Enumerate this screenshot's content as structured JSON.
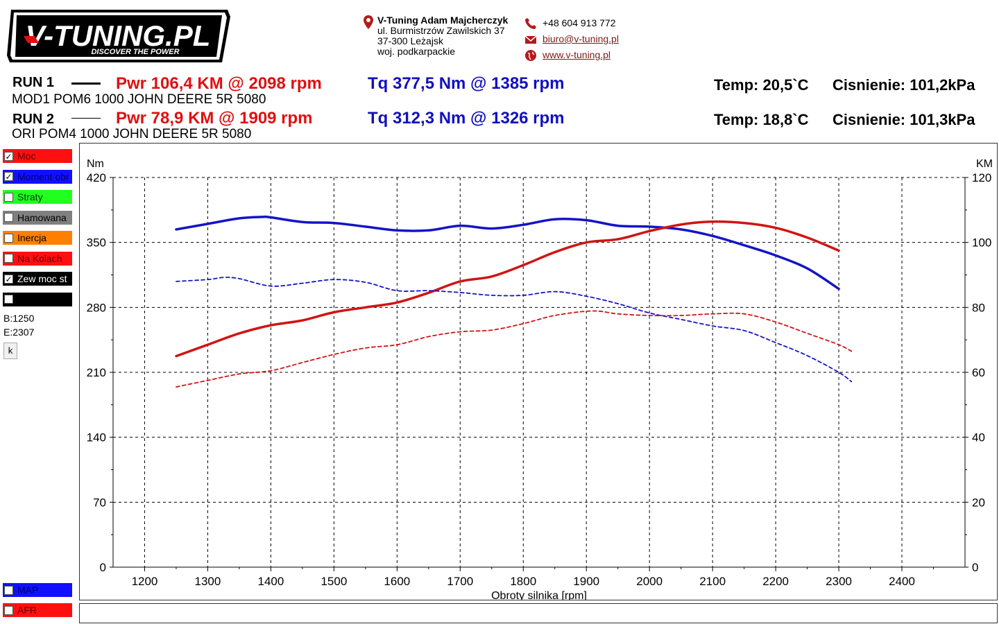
{
  "logo": {
    "text": "V-TUNING.PL",
    "tagline": "DISCOVER THE POWER"
  },
  "contact": {
    "company": "V-Tuning Adam Majcherczyk",
    "street": "ul. Burmistrzów Zawilskich 37",
    "city": "37-300 Leżajsk",
    "region": "woj. podkarpackie",
    "phone": "+48 604 913 772",
    "email": "biuro@v-tuning.pl",
    "website": "www.v-tuning.pl"
  },
  "runs": [
    {
      "label": "RUN 1",
      "description": "MOD1 POM6 1000 JOHN DEERE 5R 5080",
      "power": "Pwr  106,4 KM @ 2098 rpm",
      "torque": "Tq 377,5 Nm @ 1385 rpm",
      "temp": "Temp: 20,5`C",
      "pressure": "Cisnienie: 101,2kPa"
    },
    {
      "label": "RUN 2",
      "description": "ORI POM4 1000 JOHN DEERE 5R 5080",
      "power": "Pwr  78,9 KM @ 1909 rpm",
      "torque": "Tq 312,3 Nm @ 1326 rpm",
      "temp": "Temp: 18,8`C",
      "pressure": "Cisnienie: 101,3kPa"
    }
  ],
  "legend": [
    {
      "label": "Moc",
      "checked": true,
      "color": "#ff1010",
      "text_color": "#600000"
    },
    {
      "label": "Moment obr",
      "checked": true,
      "color": "#1010ff",
      "text_color": "#000060"
    },
    {
      "label": "Straty",
      "checked": false,
      "color": "#20ff20",
      "text_color": "#003300"
    },
    {
      "label": "Hamowana",
      "checked": false,
      "color": "#808080",
      "text_color": "#000000"
    },
    {
      "label": "Inercja",
      "checked": false,
      "color": "#ff8000",
      "text_color": "#000000"
    },
    {
      "label": "Na Kolach",
      "checked": false,
      "color": "#ff1010",
      "text_color": "#600000"
    },
    {
      "label": "Zew moc st",
      "checked": true,
      "color": "#000000",
      "text_color": "#ffffff"
    },
    {
      "label": "",
      "checked": false,
      "color": "#000000",
      "text_color": "#ffffff"
    }
  ],
  "range": {
    "begin": "B:1250",
    "end": "E:2307"
  },
  "k_button": "k",
  "bottom_legend": [
    {
      "label": "MAP",
      "checked": false,
      "color": "#1010ff",
      "text_color": "#000060"
    },
    {
      "label": "AFR",
      "checked": false,
      "color": "#ff1010",
      "text_color": "#600000"
    }
  ],
  "chart_data": {
    "type": "line",
    "xlabel": "Obroty silnika [rpm]",
    "ylabel_left": "Nm",
    "ylabel_right": "KM",
    "xlim": [
      1150,
      2500
    ],
    "xticks": [
      1200,
      1300,
      1400,
      1500,
      1600,
      1700,
      1800,
      1900,
      2000,
      2100,
      2200,
      2300,
      2400
    ],
    "ylim_left": [
      0,
      420
    ],
    "yticks_left": [
      0,
      70,
      140,
      210,
      280,
      350,
      420
    ],
    "ylim_right": [
      0,
      120
    ],
    "yticks_right": [
      0,
      20,
      40,
      60,
      80,
      100,
      120
    ],
    "grid": true,
    "series": [
      {
        "name": "RUN 1 Tq",
        "axis": "left",
        "color": "#1414c8",
        "style": "solid",
        "x": [
          1250,
          1300,
          1350,
          1385,
          1400,
          1450,
          1500,
          1550,
          1600,
          1650,
          1700,
          1750,
          1800,
          1850,
          1900,
          1950,
          2000,
          2050,
          2100,
          2150,
          2200,
          2250,
          2300
        ],
        "y": [
          364,
          370,
          376,
          377.5,
          377,
          372,
          371,
          367,
          363,
          363,
          368,
          365,
          369,
          375,
          374,
          368,
          367,
          364,
          357,
          347,
          336,
          322,
          300
        ]
      },
      {
        "name": "RUN 1 Pwr",
        "axis": "right",
        "color": "#d01414",
        "style": "solid",
        "x": [
          1250,
          1300,
          1350,
          1400,
          1450,
          1500,
          1550,
          1600,
          1650,
          1700,
          1750,
          1800,
          1850,
          1900,
          1950,
          2000,
          2050,
          2098,
          2150,
          2200,
          2250,
          2300
        ],
        "y": [
          65,
          68.5,
          72,
          74.5,
          76,
          78.5,
          80,
          81.5,
          84.5,
          88,
          89.5,
          93,
          97,
          100,
          101,
          103.5,
          105.5,
          106.4,
          106,
          104.5,
          101.5,
          97.5
        ]
      },
      {
        "name": "RUN 2 Tq",
        "axis": "left",
        "color": "#1414c8",
        "style": "dashed",
        "x": [
          1250,
          1300,
          1326,
          1350,
          1400,
          1450,
          1500,
          1550,
          1600,
          1650,
          1700,
          1750,
          1800,
          1850,
          1900,
          1950,
          2000,
          2050,
          2100,
          2150,
          2200,
          2250,
          2300,
          2320
        ],
        "y": [
          308,
          310,
          312.3,
          311,
          303,
          306,
          310,
          307,
          298,
          298,
          296,
          293,
          293,
          297,
          292,
          284,
          274,
          267,
          260,
          255,
          242,
          228,
          210,
          200
        ]
      },
      {
        "name": "RUN 2 Pwr",
        "axis": "right",
        "color": "#d01414",
        "style": "dashed",
        "x": [
          1250,
          1300,
          1350,
          1400,
          1450,
          1500,
          1550,
          1600,
          1650,
          1700,
          1750,
          1800,
          1850,
          1909,
          1950,
          2000,
          2050,
          2100,
          2150,
          2200,
          2250,
          2300,
          2320
        ],
        "y": [
          55.5,
          57.5,
          59.5,
          60.5,
          63,
          65.5,
          67.5,
          68.5,
          71,
          72.5,
          73,
          75,
          77.5,
          78.9,
          78,
          77.5,
          77.5,
          78,
          78,
          75.5,
          72,
          68.5,
          66.5
        ]
      }
    ]
  }
}
